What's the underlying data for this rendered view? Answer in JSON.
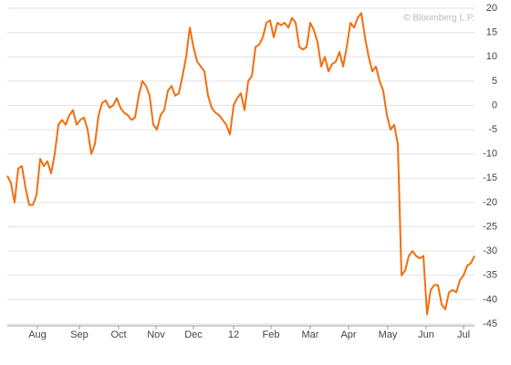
{
  "chart_data": {
    "type": "line",
    "annotation": "© Bloomberg L.P.",
    "series": [
      {
        "color": "#f26f0f",
        "values": [
          -14.5,
          -16,
          -20,
          -13,
          -12.5,
          -17,
          -20.5,
          -20.5,
          -18.5,
          -11,
          -12.5,
          -11.5,
          -14,
          -10,
          -4,
          -3,
          -4,
          -2,
          -1,
          -4,
          -3,
          -2.5,
          -5,
          -10,
          -8,
          -2,
          0.5,
          1,
          -0.5,
          0,
          1.5,
          -0.5,
          -1.5,
          -2,
          -3,
          -2.5,
          2,
          5,
          4,
          2,
          -4,
          -5,
          -2,
          -1,
          3,
          4,
          2,
          2.5,
          6,
          10,
          16,
          12,
          9,
          8,
          7,
          2,
          -0.5,
          -1.5,
          -2,
          -3,
          -4,
          -6,
          0,
          1.5,
          2.5,
          -1,
          5,
          6,
          12,
          12.5,
          14,
          17,
          17.5,
          14,
          17,
          16.5,
          17,
          16,
          18,
          17,
          12,
          11.5,
          12,
          17,
          15.5,
          13,
          8,
          10,
          7,
          8.5,
          9,
          11,
          8,
          12,
          17,
          16,
          18,
          19,
          14,
          10,
          7,
          8,
          5,
          3,
          -2,
          -5,
          -4,
          -8,
          -35,
          -34,
          -31,
          -30,
          -31,
          -31.5,
          -31,
          -43,
          -38,
          -37,
          -37,
          -41,
          -42,
          -38.5,
          -38,
          -38.5,
          -36,
          -35,
          -33,
          -32.5,
          -31
        ]
      }
    ],
    "xlim": [
      0,
      128
    ],
    "xticks": [
      {
        "value": 8.25,
        "label": "Aug"
      },
      {
        "value": 19.75,
        "label": "Sep"
      },
      {
        "value": 30.5,
        "label": "Oct"
      },
      {
        "value": 40.75,
        "label": "Nov"
      },
      {
        "value": 51,
        "label": "Dec"
      },
      {
        "value": 62,
        "label": "12"
      },
      {
        "value": 72.25,
        "label": "Feb"
      },
      {
        "value": 83,
        "label": "Mar"
      },
      {
        "value": 93.5,
        "label": "Apr"
      },
      {
        "value": 104.25,
        "label": "May"
      },
      {
        "value": 114.75,
        "label": "Jun"
      },
      {
        "value": 125,
        "label": "Jul"
      }
    ],
    "ylim": [
      -45,
      20
    ],
    "yticks": [
      -45,
      -40,
      -35,
      -30,
      -25,
      -20,
      -15,
      -10,
      -5,
      0,
      5,
      10,
      15,
      20
    ],
    "grid": true
  }
}
